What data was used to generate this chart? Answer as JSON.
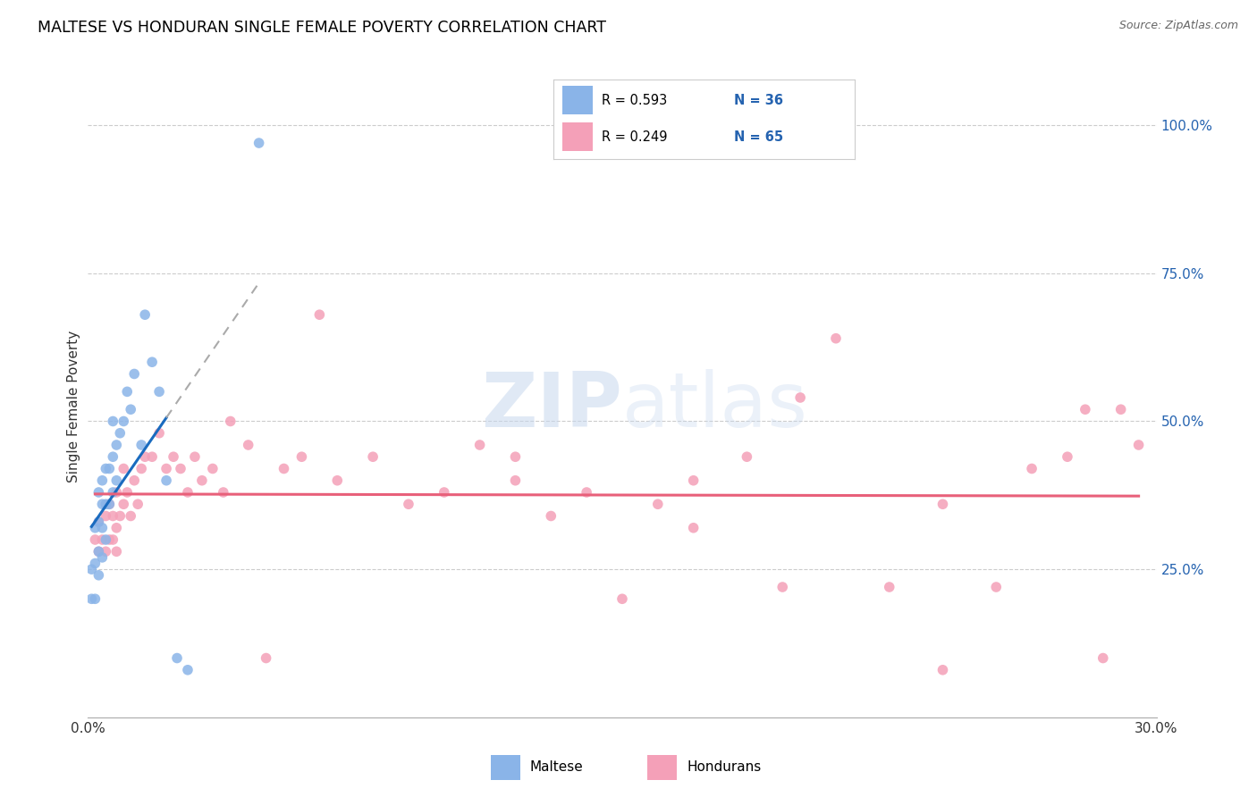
{
  "title": "MALTESE VS HONDURAN SINGLE FEMALE POVERTY CORRELATION CHART",
  "source": "Source: ZipAtlas.com",
  "ylabel": "Single Female Poverty",
  "xlim": [
    0.0,
    0.3
  ],
  "ylim": [
    0.0,
    1.05
  ],
  "xticks": [
    0.0,
    0.05,
    0.1,
    0.15,
    0.2,
    0.25,
    0.3
  ],
  "xticklabels": [
    "0.0%",
    "",
    "",
    "",
    "",
    "",
    "30.0%"
  ],
  "ytick_right_labels": [
    "100.0%",
    "75.0%",
    "50.0%",
    "25.0%"
  ],
  "ytick_right_values": [
    1.0,
    0.75,
    0.5,
    0.25
  ],
  "maltese_R": "0.593",
  "maltese_N": "36",
  "honduran_R": "0.249",
  "honduran_N": "65",
  "maltese_color": "#8ab4e8",
  "honduran_color": "#f4a0b8",
  "maltese_line_color": "#1a6bbf",
  "honduran_line_color": "#e8607a",
  "legend_text_color": "#2563b0",
  "watermark_color": "#d0dff0",
  "maltese_x": [
    0.001,
    0.001,
    0.002,
    0.002,
    0.002,
    0.003,
    0.003,
    0.003,
    0.003,
    0.004,
    0.004,
    0.004,
    0.004,
    0.005,
    0.005,
    0.005,
    0.006,
    0.006,
    0.007,
    0.007,
    0.007,
    0.008,
    0.008,
    0.009,
    0.01,
    0.011,
    0.012,
    0.013,
    0.015,
    0.016,
    0.018,
    0.02,
    0.022,
    0.025,
    0.028,
    0.048
  ],
  "maltese_y": [
    0.2,
    0.25,
    0.2,
    0.26,
    0.32,
    0.24,
    0.28,
    0.33,
    0.38,
    0.27,
    0.32,
    0.36,
    0.4,
    0.3,
    0.36,
    0.42,
    0.36,
    0.42,
    0.38,
    0.44,
    0.5,
    0.4,
    0.46,
    0.48,
    0.5,
    0.55,
    0.52,
    0.58,
    0.46,
    0.68,
    0.6,
    0.55,
    0.4,
    0.1,
    0.08,
    0.97
  ],
  "honduran_x": [
    0.002,
    0.003,
    0.003,
    0.004,
    0.005,
    0.005,
    0.006,
    0.006,
    0.007,
    0.007,
    0.008,
    0.008,
    0.008,
    0.009,
    0.01,
    0.01,
    0.011,
    0.012,
    0.013,
    0.014,
    0.015,
    0.016,
    0.018,
    0.02,
    0.022,
    0.024,
    0.026,
    0.028,
    0.03,
    0.032,
    0.035,
    0.038,
    0.04,
    0.045,
    0.05,
    0.055,
    0.06,
    0.065,
    0.07,
    0.08,
    0.09,
    0.1,
    0.11,
    0.12,
    0.13,
    0.14,
    0.15,
    0.16,
    0.17,
    0.185,
    0.195,
    0.21,
    0.225,
    0.24,
    0.255,
    0.265,
    0.275,
    0.285,
    0.29,
    0.295,
    0.12,
    0.17,
    0.2,
    0.24,
    0.28
  ],
  "honduran_y": [
    0.3,
    0.28,
    0.33,
    0.3,
    0.28,
    0.34,
    0.3,
    0.36,
    0.3,
    0.34,
    0.28,
    0.32,
    0.38,
    0.34,
    0.36,
    0.42,
    0.38,
    0.34,
    0.4,
    0.36,
    0.42,
    0.44,
    0.44,
    0.48,
    0.42,
    0.44,
    0.42,
    0.38,
    0.44,
    0.4,
    0.42,
    0.38,
    0.5,
    0.46,
    0.1,
    0.42,
    0.44,
    0.68,
    0.4,
    0.44,
    0.36,
    0.38,
    0.46,
    0.4,
    0.34,
    0.38,
    0.2,
    0.36,
    0.4,
    0.44,
    0.22,
    0.64,
    0.22,
    0.36,
    0.22,
    0.42,
    0.44,
    0.1,
    0.52,
    0.46,
    0.44,
    0.32,
    0.54,
    0.08,
    0.52
  ],
  "maltese_line_x_start": 0.001,
  "maltese_line_x_solid_end": 0.022,
  "maltese_line_x_dashed_end": 0.048,
  "honduran_line_x_start": 0.002,
  "honduran_line_x_end": 0.295
}
